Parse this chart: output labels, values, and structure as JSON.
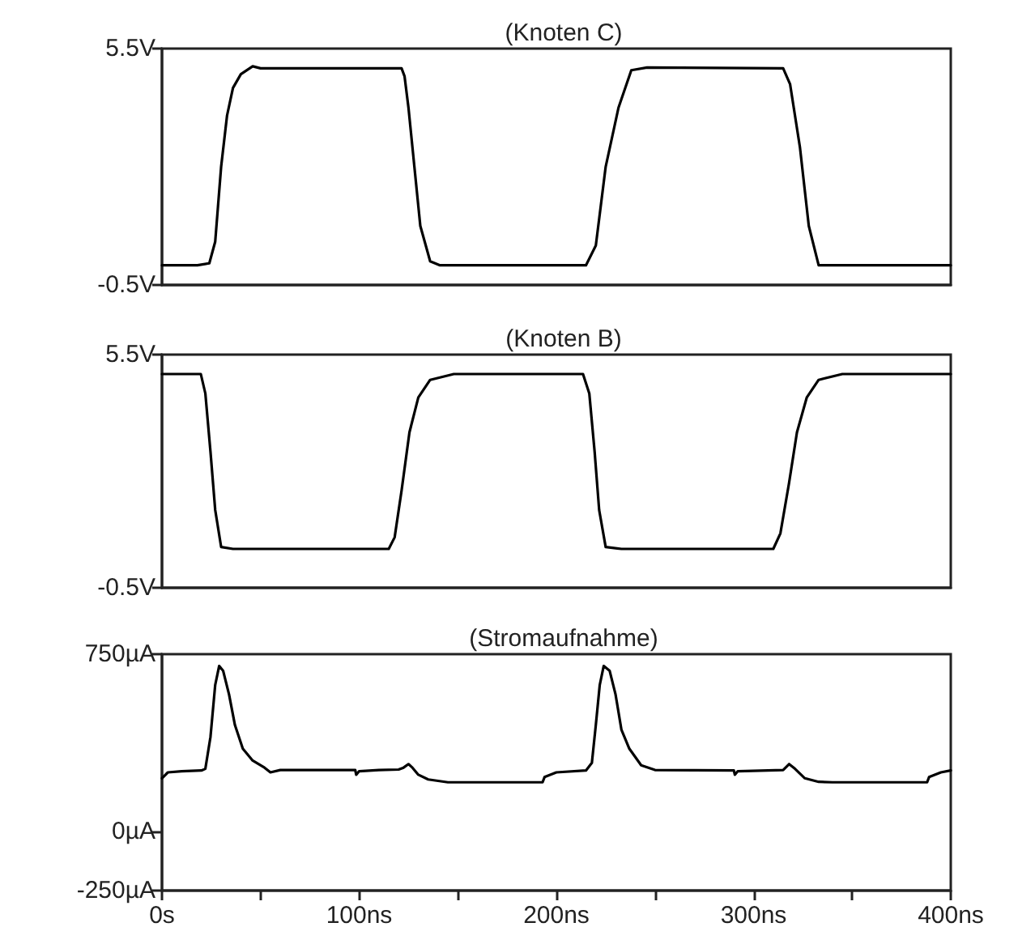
{
  "chart_data": [
    {
      "type": "line",
      "title": "(Knoten C)",
      "x": [
        0,
        18,
        24,
        27,
        30,
        33,
        36,
        40,
        46,
        50,
        121.5,
        123,
        125,
        128,
        131,
        136,
        141,
        215,
        220,
        225,
        231.5,
        238,
        246,
        315,
        318.5,
        323.5,
        328,
        333,
        400
      ],
      "series": [
        {
          "color": "#000000",
          "values": [
            0,
            0,
            0.05,
            0.6,
            2.5,
            3.8,
            4.5,
            4.85,
            5.05,
            5,
            5,
            4.8,
            4,
            2.5,
            1,
            0.1,
            0,
            0,
            0.5,
            2.5,
            4,
            4.95,
            5.02,
            5,
            4.6,
            3,
            1,
            0,
            0
          ]
        }
      ],
      "xlim": [
        0,
        400
      ],
      "ylim": [
        -0.5,
        5.5
      ],
      "yticks": [
        {
          "value": -0.5,
          "label": "-0.5V"
        },
        {
          "value": 5.5,
          "label": "5.5V"
        }
      ],
      "tick_labels": "y",
      "grid": false,
      "marker": "none",
      "line_style": "solid"
    },
    {
      "type": "line",
      "title": "(Knoten B)",
      "x": [
        0,
        19.7,
        22,
        24.6,
        27,
        30,
        36,
        115,
        118,
        121.5,
        125.5,
        130,
        136,
        148,
        213.5,
        216.7,
        219.4,
        221.7,
        225,
        233,
        310,
        313.6,
        318,
        322,
        327,
        333,
        345,
        400
      ],
      "series": [
        {
          "color": "#000000",
          "values": [
            5,
            5,
            4.5,
            3,
            1.5,
            0.55,
            0.5,
            0.5,
            0.8,
            2,
            3.5,
            4.4,
            4.85,
            5,
            5,
            4.5,
            3,
            1.5,
            0.55,
            0.5,
            0.5,
            0.9,
            2.2,
            3.5,
            4.4,
            4.85,
            5,
            5
          ]
        }
      ],
      "xlim": [
        0,
        400
      ],
      "ylim": [
        -0.5,
        5.5
      ],
      "yticks": [
        {
          "value": -0.5,
          "label": "-0.5V"
        },
        {
          "value": 5.5,
          "label": "5.5V"
        }
      ],
      "tick_labels": "y",
      "grid": false,
      "marker": "none",
      "line_style": "solid"
    },
    {
      "type": "line",
      "title": "(Stromaufnahme)",
      "x": [
        0,
        3,
        10,
        20,
        22,
        24.6,
        27,
        29,
        31,
        34,
        37,
        41,
        46,
        52,
        55,
        60,
        98,
        98.5,
        100,
        110,
        120,
        122.5,
        125,
        127,
        130,
        135,
        145,
        193,
        194,
        200,
        215,
        218,
        220,
        222,
        224,
        227,
        230,
        233,
        237,
        243,
        250,
        290,
        290.5,
        292,
        315,
        318,
        321,
        326,
        333,
        340,
        388,
        389,
        395,
        400
      ],
      "series": [
        {
          "color": "#000000",
          "values": [
            225,
            250,
            255,
            258,
            265,
            400,
            620,
            700,
            680,
            580,
            450,
            350,
            300,
            270,
            250,
            260,
            260,
            240,
            255,
            260,
            262,
            270,
            285,
            270,
            240,
            220,
            208,
            208,
            230,
            250,
            258,
            290,
            450,
            620,
            700,
            680,
            580,
            430,
            350,
            280,
            260,
            258,
            240,
            255,
            260,
            285,
            265,
            225,
            210,
            208,
            208,
            230,
            250,
            258
          ]
        }
      ],
      "xlim": [
        0,
        400
      ],
      "xticks": [
        {
          "value": 0,
          "label": "0s"
        },
        {
          "value": 50,
          "label": null
        },
        {
          "value": 100,
          "label": "100ns"
        },
        {
          "value": 150,
          "label": null
        },
        {
          "value": 200,
          "label": "200ns"
        },
        {
          "value": 250,
          "label": null
        },
        {
          "value": 300,
          "label": "300ns"
        },
        {
          "value": 350,
          "label": null
        },
        {
          "value": 400,
          "label": "400ns"
        }
      ],
      "ylim": [
        -250,
        750
      ],
      "yticks": [
        {
          "value": -250,
          "label": "-250µA"
        },
        {
          "value": 0,
          "label": "0µA"
        },
        {
          "value": 750,
          "label": "750µA"
        }
      ],
      "grid": false,
      "marker": "none",
      "line_style": "solid"
    }
  ]
}
